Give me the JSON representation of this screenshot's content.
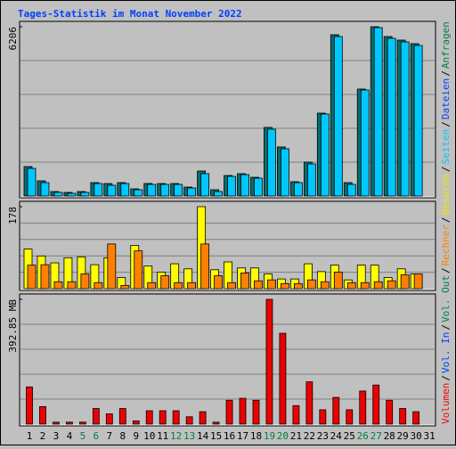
{
  "title": "Tages-Statistik im Monat November 2022",
  "categories": [
    "1",
    "2",
    "3",
    "4",
    "5",
    "6",
    "7",
    "8",
    "9",
    "10",
    "11",
    "12",
    "13",
    "14",
    "15",
    "16",
    "17",
    "18",
    "19",
    "20",
    "21",
    "22",
    "23",
    "24",
    "25",
    "26",
    "27",
    "28",
    "29",
    "30",
    "31"
  ],
  "weekend": [
    5,
    6,
    12,
    13,
    19,
    20,
    26,
    27
  ],
  "weekend_color": "#008040",
  "category_color": "#000000",
  "legend": [
    {
      "label": "Anfragen",
      "color": "#008040"
    },
    {
      "label": "Dateien",
      "color": "#0040ff"
    },
    {
      "label": "Seiten",
      "color": "#00c8ff"
    },
    {
      "label": "Besuche",
      "color": "#e8e800"
    },
    {
      "label": "Rechner",
      "color": "#ff8000"
    },
    {
      "label": "Vol. Out",
      "color": "#008040"
    },
    {
      "label": "Vol. In",
      "color": "#0040ff"
    },
    {
      "label": "Volumen",
      "color": "#ff0000"
    }
  ],
  "legend_separator": "/",
  "chart_data": [
    {
      "type": "bar",
      "ylim": [
        0,
        6206
      ],
      "yticks": [
        6206
      ],
      "grid_divisions": 5,
      "series": [
        {
          "name": "Anfragen",
          "color": "#007070",
          "values": [
            1078,
            555,
            163,
            130,
            163,
            490,
            457,
            490,
            261,
            457,
            457,
            457,
            327,
            915,
            229,
            751,
            817,
            686,
            2515,
            1797,
            523,
            1241,
            3038,
            5912,
            490,
            3920,
            6206,
            5847,
            5716,
            5585,
            0
          ]
        },
        {
          "name": "Dateien",
          "color": "#00c8ff",
          "values": [
            1012,
            490,
            131,
            98,
            131,
            457,
            392,
            457,
            229,
            425,
            425,
            425,
            294,
            817,
            163,
            719,
            784,
            653,
            2450,
            1731,
            490,
            1176,
            3005,
            5847,
            425,
            3887,
            6173,
            5781,
            5650,
            5520,
            0
          ]
        }
      ]
    },
    {
      "type": "bar",
      "ylim": [
        0,
        178
      ],
      "yticks": [
        178
      ],
      "grid_divisions": 5,
      "series": [
        {
          "name": "Besuche",
          "color": "#ffff00",
          "values": [
            86,
            71,
            56,
            67,
            69,
            52,
            67,
            24,
            94,
            49,
            36,
            54,
            43,
            178,
            41,
            58,
            45,
            45,
            32,
            21,
            21,
            54,
            37,
            51,
            19,
            51,
            51,
            24,
            43,
            32,
            0
          ]
        },
        {
          "name": "Rechner",
          "color": "#ff8000",
          "values": [
            51,
            52,
            15,
            15,
            32,
            13,
            97,
            7,
            82,
            13,
            28,
            13,
            13,
            97,
            28,
            13,
            34,
            17,
            19,
            11,
            11,
            19,
            15,
            36,
            13,
            13,
            15,
            17,
            30,
            32,
            0
          ]
        }
      ]
    },
    {
      "type": "bar",
      "ylim": [
        0,
        392.85
      ],
      "yticks": [
        {
          "value": 392.85,
          "label": "392.85 MB"
        }
      ],
      "grid_divisions": 5,
      "series": [
        {
          "name": "Volumen",
          "color": "#ee0000",
          "values": [
            117,
            55,
            6,
            6,
            6,
            49,
            32,
            49,
            10,
            42,
            42,
            42,
            23,
            39,
            6,
            75,
            81,
            75,
            392.85,
            286,
            58,
            133,
            45,
            84,
            45,
            104,
            123,
            75,
            49,
            39,
            0
          ]
        }
      ]
    }
  ]
}
